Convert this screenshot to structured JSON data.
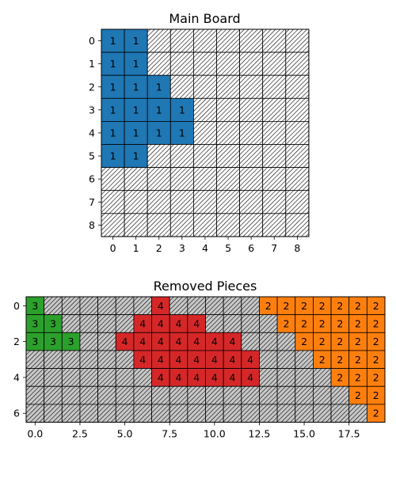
{
  "colors": {
    "piece_1": "#1f77b4",
    "piece_2": "#ff7f0e",
    "piece_3": "#2ca02c",
    "piece_4": "#d62728",
    "empty_hatch_bg": "#ffffff",
    "empty_hatch_bg_pieces": "#bfbfbf",
    "grid_line": "#000000"
  },
  "main_board": {
    "title": "Main Board",
    "x_ticks": [
      "0",
      "1",
      "2",
      "3",
      "4",
      "5",
      "6",
      "7",
      "8"
    ],
    "y_ticks": [
      "0",
      "1",
      "2",
      "3",
      "4",
      "5",
      "6",
      "7",
      "8"
    ],
    "cells": [
      [
        1,
        1,
        0,
        0,
        0,
        0,
        0,
        0,
        0
      ],
      [
        1,
        1,
        0,
        0,
        0,
        0,
        0,
        0,
        0
      ],
      [
        1,
        1,
        1,
        0,
        0,
        0,
        0,
        0,
        0
      ],
      [
        1,
        1,
        1,
        1,
        0,
        0,
        0,
        0,
        0
      ],
      [
        1,
        1,
        1,
        1,
        0,
        0,
        0,
        0,
        0
      ],
      [
        1,
        1,
        0,
        0,
        0,
        0,
        0,
        0,
        0
      ],
      [
        0,
        0,
        0,
        0,
        0,
        0,
        0,
        0,
        0
      ],
      [
        0,
        0,
        0,
        0,
        0,
        0,
        0,
        0,
        0
      ],
      [
        0,
        0,
        0,
        0,
        0,
        0,
        0,
        0,
        0
      ]
    ]
  },
  "removed_pieces": {
    "title": "Removed Pieces",
    "x_ticks": [
      "0.0",
      "2.5",
      "5.0",
      "7.5",
      "10.0",
      "12.5",
      "15.0",
      "17.5"
    ],
    "x_tick_values": [
      0,
      2.5,
      5,
      7.5,
      10,
      12.5,
      15,
      17.5
    ],
    "y_ticks": [
      "0",
      "2",
      "4",
      "6"
    ],
    "y_tick_values": [
      0,
      2,
      4,
      6
    ],
    "cells": [
      [
        3,
        0,
        0,
        0,
        0,
        0,
        0,
        4,
        0,
        0,
        0,
        0,
        0,
        2,
        2,
        2,
        2,
        2,
        2,
        2
      ],
      [
        3,
        3,
        0,
        0,
        0,
        0,
        4,
        4,
        4,
        4,
        0,
        0,
        0,
        0,
        2,
        2,
        2,
        2,
        2,
        2
      ],
      [
        3,
        3,
        3,
        0,
        0,
        4,
        4,
        4,
        4,
        4,
        4,
        4,
        0,
        0,
        0,
        2,
        2,
        2,
        2,
        2
      ],
      [
        0,
        0,
        0,
        0,
        0,
        0,
        4,
        4,
        4,
        4,
        4,
        4,
        4,
        0,
        0,
        0,
        2,
        2,
        2,
        2
      ],
      [
        0,
        0,
        0,
        0,
        0,
        0,
        0,
        4,
        4,
        4,
        4,
        4,
        4,
        0,
        0,
        0,
        0,
        2,
        2,
        2
      ],
      [
        0,
        0,
        0,
        0,
        0,
        0,
        0,
        0,
        0,
        0,
        0,
        0,
        0,
        0,
        0,
        0,
        0,
        0,
        2,
        2
      ],
      [
        0,
        0,
        0,
        0,
        0,
        0,
        0,
        0,
        0,
        0,
        0,
        0,
        0,
        0,
        0,
        0,
        0,
        0,
        0,
        2
      ]
    ]
  }
}
